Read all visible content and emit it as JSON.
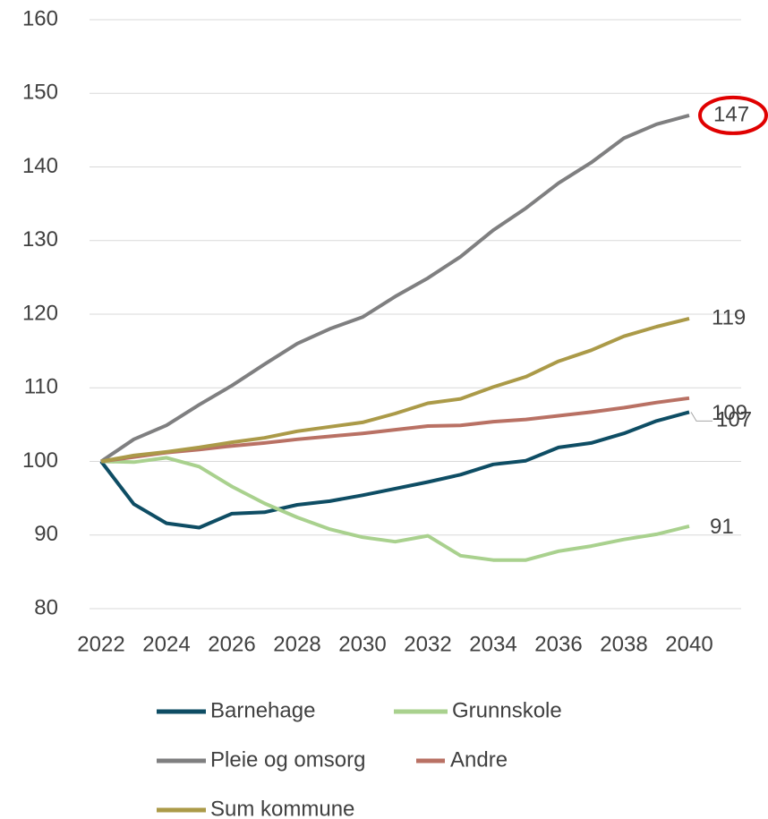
{
  "chart_data": {
    "type": "line",
    "x": [
      2022,
      2023,
      2024,
      2025,
      2026,
      2027,
      2028,
      2029,
      2030,
      2031,
      2032,
      2033,
      2034,
      2035,
      2036,
      2037,
      2038,
      2039,
      2040
    ],
    "xlim": [
      2022,
      2040
    ],
    "xticks": [
      2022,
      2024,
      2026,
      2028,
      2030,
      2032,
      2034,
      2036,
      2038,
      2040
    ],
    "ylim": [
      80,
      160
    ],
    "yticks": [
      80,
      90,
      100,
      110,
      120,
      130,
      140,
      150,
      160
    ],
    "grid": true,
    "series": [
      {
        "name": "Barnehage",
        "color": "#0e4d64",
        "values": [
          100,
          94.2,
          91.6,
          91.0,
          92.9,
          93.1,
          94.1,
          94.6,
          95.4,
          96.3,
          97.2,
          98.2,
          99.6,
          100.1,
          101.9,
          102.5,
          103.8,
          105.5,
          106.7
        ],
        "value_labels": [
          null,
          null,
          null,
          null,
          null,
          null,
          null,
          null,
          null,
          null,
          null,
          null,
          null,
          null,
          null,
          null,
          null,
          null,
          "107"
        ]
      },
      {
        "name": "Grunnskole",
        "color": "#a9d18e",
        "values": [
          100,
          99.9,
          100.5,
          99.3,
          96.6,
          94.3,
          92.4,
          90.8,
          89.7,
          89.1,
          89.9,
          87.2,
          86.6,
          86.6,
          87.8,
          88.5,
          89.4,
          90.1,
          91.2
        ],
        "value_labels": [
          null,
          null,
          null,
          null,
          null,
          null,
          null,
          null,
          null,
          null,
          null,
          null,
          null,
          null,
          null,
          null,
          null,
          null,
          "91"
        ]
      },
      {
        "name": "Pleie og omsorg",
        "color": "#7f7f80",
        "values": [
          100,
          103,
          104.9,
          107.7,
          110.3,
          113.2,
          116,
          118,
          119.6,
          122.4,
          124.9,
          127.8,
          131.4,
          134.4,
          137.8,
          140.6,
          143.9,
          145.8,
          147
        ],
        "value_labels": [
          null,
          null,
          null,
          null,
          null,
          null,
          null,
          null,
          null,
          null,
          null,
          null,
          null,
          null,
          null,
          null,
          null,
          null,
          "147"
        ]
      },
      {
        "name": "Andre",
        "color": "#b97164",
        "values": [
          100,
          100.6,
          101.2,
          101.6,
          102.1,
          102.5,
          103.0,
          103.4,
          103.8,
          104.3,
          104.8,
          104.9,
          105.4,
          105.7,
          106.2,
          106.7,
          107.3,
          108.0,
          108.6
        ],
        "value_labels": [
          null,
          null,
          null,
          null,
          null,
          null,
          null,
          null,
          null,
          null,
          null,
          null,
          null,
          null,
          null,
          null,
          null,
          null,
          "109"
        ]
      },
      {
        "name": "Sum kommune",
        "color": "#ab9a48",
        "values": [
          100,
          100.8,
          101.3,
          101.9,
          102.6,
          103.2,
          104.1,
          104.7,
          105.3,
          106.5,
          107.9,
          108.5,
          110.1,
          111.5,
          113.6,
          115.1,
          117.0,
          118.3,
          119.4
        ],
        "value_labels": [
          null,
          null,
          null,
          null,
          null,
          null,
          null,
          null,
          null,
          null,
          null,
          null,
          null,
          null,
          null,
          null,
          null,
          null,
          "119"
        ]
      }
    ]
  }
}
